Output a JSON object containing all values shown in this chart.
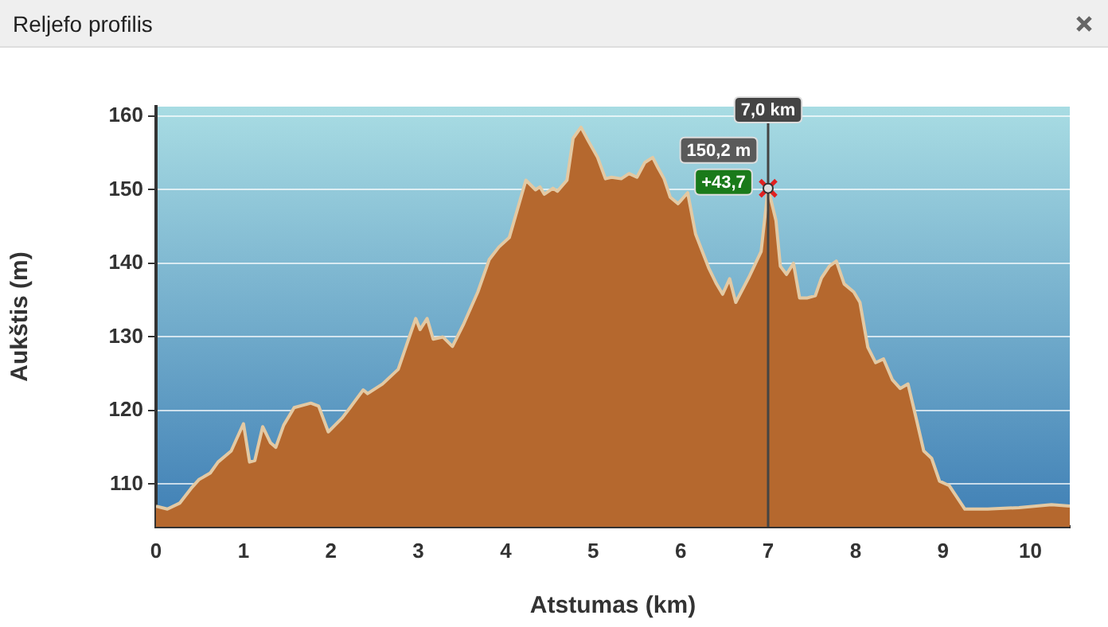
{
  "chart_data": {
    "type": "area",
    "title": "Reljefo profilis",
    "xlabel": "Atstumas (km)",
    "ylabel": "Aukštis (m)",
    "x": [
      0,
      0.13,
      0.27,
      0.4,
      0.49,
      0.62,
      0.71,
      0.86,
      1.0,
      1.07,
      1.13,
      1.22,
      1.31,
      1.37,
      1.46,
      1.58,
      1.77,
      1.86,
      1.97,
      2.13,
      2.22,
      2.37,
      2.42,
      2.59,
      2.77,
      2.9,
      2.97,
      3.02,
      3.1,
      3.17,
      3.28,
      3.39,
      3.52,
      3.68,
      3.81,
      3.92,
      4.04,
      4.23,
      4.34,
      4.39,
      4.44,
      4.54,
      4.59,
      4.7,
      4.77,
      4.86,
      4.95,
      5.05,
      5.14,
      5.21,
      5.32,
      5.41,
      5.5,
      5.59,
      5.68,
      5.74,
      5.81,
      5.88,
      5.97,
      6.08,
      6.17,
      6.32,
      6.41,
      6.48,
      6.56,
      6.63,
      6.78,
      6.92,
      7.0,
      7.09,
      7.14,
      7.21,
      7.29,
      7.36,
      7.45,
      7.54,
      7.61,
      7.7,
      7.78,
      7.87,
      7.98,
      8.05,
      8.14,
      8.23,
      8.32,
      8.42,
      8.51,
      8.6,
      8.69,
      8.78,
      8.87,
      8.96,
      9.07,
      9.25,
      9.51,
      9.87,
      10.24,
      10.45
    ],
    "series": [
      {
        "color": "#b5682e",
        "values": [
          107.0,
          106.6,
          107.4,
          109.4,
          110.6,
          111.5,
          113,
          114.5,
          118.2,
          113,
          113.2,
          117.8,
          115.6,
          115,
          118,
          120.4,
          121,
          120.6,
          117.1,
          119,
          120.4,
          122.8,
          122.3,
          123.6,
          125.6,
          130.1,
          132.5,
          131,
          132.5,
          129.7,
          130,
          128.7,
          131.8,
          136.1,
          140.5,
          142.2,
          143.5,
          151.3,
          150,
          150.4,
          149.4,
          150.2,
          149.8,
          151.3,
          157,
          158.5,
          156.5,
          154.4,
          151.5,
          151.7,
          151.5,
          152.2,
          151.7,
          153.7,
          154.4,
          153,
          151.5,
          149,
          148.1,
          149.6,
          144,
          139.4,
          137.2,
          135.8,
          137.9,
          134.7,
          138.1,
          141.6,
          150.2,
          145.8,
          139.6,
          138.5,
          140,
          135.3,
          135.3,
          135.6,
          138,
          139.6,
          140.3,
          137.2,
          136.1,
          134.7,
          128.6,
          126.5,
          127,
          124.2,
          123,
          123.6,
          119.1,
          114.5,
          113.5,
          110.4,
          109.8,
          106.6,
          106.6,
          106.8,
          107.2,
          107.0
        ]
      }
    ],
    "xlim": [
      0,
      10.45
    ],
    "xticks": [
      0,
      1,
      2,
      3,
      4,
      5,
      6,
      7,
      8,
      9,
      10
    ],
    "ylim": [
      104.2,
      161.3
    ],
    "yticks": [
      110,
      120,
      130,
      140,
      150,
      160
    ],
    "grid": "y",
    "ref_lines": [
      {
        "axis": "x",
        "value": 7,
        "label": "7,0 km",
        "color": "#444444"
      }
    ],
    "annotations": [
      {
        "text": "150,2 m",
        "x": 7,
        "y": 150.2
      },
      {
        "text": "+43,7",
        "x": 7,
        "y": 150.2
      }
    ]
  }
}
